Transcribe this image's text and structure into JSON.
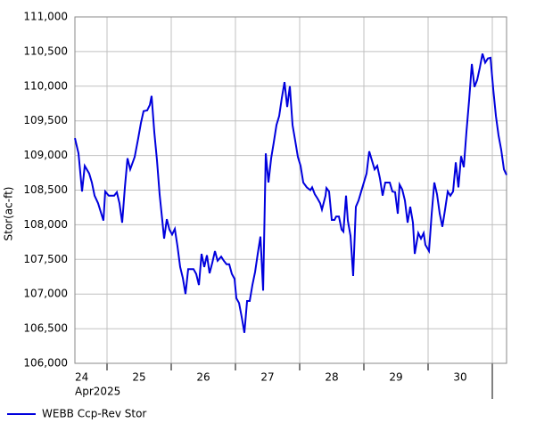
{
  "chart_data": {
    "type": "line",
    "ylabel": "Stor(ac-ft)",
    "x_sublabel": "Apr2025",
    "xlim": [
      24.5,
      31.222
    ],
    "xticks": [
      {
        "value": 24.5,
        "label": "24"
      },
      {
        "value": 25.5,
        "label": "25"
      },
      {
        "value": 26.5,
        "label": "26"
      },
      {
        "value": 27.5,
        "label": "27"
      },
      {
        "value": 28.5,
        "label": "28"
      },
      {
        "value": 29.5,
        "label": "29"
      },
      {
        "value": 30.5,
        "label": "30"
      }
    ],
    "xgrid": [
      25,
      26,
      27,
      28,
      29,
      30,
      31
    ],
    "ylim": [
      106000,
      111000
    ],
    "yticks": [
      {
        "value": 106000,
        "label": "106,000"
      },
      {
        "value": 106500,
        "label": "106,500"
      },
      {
        "value": 107000,
        "label": "107,000"
      },
      {
        "value": 107500,
        "label": "107,500"
      },
      {
        "value": 108000,
        "label": "108,000"
      },
      {
        "value": 108500,
        "label": "108,500"
      },
      {
        "value": 109000,
        "label": "109,000"
      },
      {
        "value": 109500,
        "label": "109,500"
      },
      {
        "value": 110000,
        "label": "110,000"
      },
      {
        "value": 110500,
        "label": "110,500"
      },
      {
        "value": 111000,
        "label": "111,000"
      }
    ],
    "grid": true,
    "x": [
      24.5,
      24.556,
      24.611,
      24.653,
      24.722,
      24.764,
      24.806,
      24.861,
      24.944,
      24.972,
      25.028,
      25.111,
      25.153,
      25.194,
      25.236,
      25.278,
      25.319,
      25.361,
      25.431,
      25.486,
      25.528,
      25.569,
      25.625,
      25.667,
      25.694,
      25.736,
      25.778,
      25.819,
      25.861,
      25.889,
      25.931,
      25.972,
      26.014,
      26.056,
      26.097,
      26.139,
      26.181,
      26.222,
      26.264,
      26.347,
      26.389,
      26.431,
      26.472,
      26.514,
      26.556,
      26.597,
      26.639,
      26.681,
      26.722,
      26.778,
      26.819,
      26.861,
      26.903,
      26.944,
      26.986,
      27.014,
      27.056,
      27.097,
      27.139,
      27.181,
      27.222,
      27.264,
      27.306,
      27.347,
      27.389,
      27.431,
      27.472,
      27.514,
      27.556,
      27.597,
      27.639,
      27.681,
      27.722,
      27.764,
      27.806,
      27.847,
      27.889,
      27.931,
      27.972,
      28.014,
      28.056,
      28.111,
      28.167,
      28.194,
      28.236,
      28.278,
      28.319,
      28.347,
      28.403,
      28.417,
      28.458,
      28.5,
      28.542,
      28.569,
      28.611,
      28.653,
      28.681,
      28.722,
      28.75,
      28.792,
      28.833,
      28.875,
      28.917,
      28.958,
      29.0,
      29.042,
      29.083,
      29.125,
      29.167,
      29.208,
      29.25,
      29.292,
      29.333,
      29.403,
      29.444,
      29.486,
      29.528,
      29.556,
      29.597,
      29.639,
      29.681,
      29.722,
      29.764,
      29.792,
      29.847,
      29.889,
      29.931,
      29.958,
      30.014,
      30.056,
      30.097,
      30.139,
      30.181,
      30.222,
      30.264,
      30.306,
      30.347,
      30.389,
      30.431,
      30.472,
      30.514,
      30.556,
      30.597,
      30.639,
      30.681,
      30.722,
      30.764,
      30.806,
      30.847,
      30.889,
      30.931,
      30.972,
      31.014,
      31.056,
      31.097,
      31.139,
      31.181,
      31.222
    ],
    "series": [
      {
        "name": "WEBB Ccp-Rev Stor",
        "color": "#0000dd",
        "values": [
          109250,
          109030,
          108480,
          108850,
          108740,
          108610,
          108420,
          108310,
          108060,
          108480,
          108420,
          108420,
          108470,
          108310,
          108030,
          108540,
          108960,
          108800,
          108980,
          109250,
          109470,
          109640,
          109650,
          109730,
          109860,
          109340,
          108930,
          108440,
          108060,
          107800,
          108080,
          107930,
          107860,
          107940,
          107690,
          107390,
          107230,
          107000,
          107360,
          107360,
          107290,
          107130,
          107580,
          107390,
          107560,
          107300,
          107450,
          107620,
          107480,
          107540,
          107480,
          107430,
          107430,
          107290,
          107220,
          106940,
          106870,
          106670,
          106440,
          106900,
          106900,
          107130,
          107320,
          107580,
          107830,
          107050,
          109030,
          108610,
          108960,
          109190,
          109440,
          109570,
          109830,
          110060,
          109700,
          110000,
          109440,
          109210,
          108980,
          108850,
          108610,
          108540,
          108500,
          108540,
          108440,
          108380,
          108310,
          108220,
          108420,
          108530,
          108480,
          108070,
          108070,
          108120,
          108120,
          107930,
          107900,
          108420,
          108060,
          107840,
          107260,
          108260,
          108350,
          108480,
          108610,
          108740,
          109060,
          108930,
          108800,
          108850,
          108670,
          108420,
          108610,
          108610,
          108480,
          108470,
          108160,
          108580,
          108510,
          108350,
          108030,
          108260,
          108030,
          107580,
          107880,
          107800,
          107880,
          107710,
          107620,
          108160,
          108610,
          108440,
          108160,
          107970,
          108220,
          108480,
          108420,
          108480,
          108900,
          108540,
          108990,
          108830,
          109340,
          109800,
          110320,
          109990,
          110090,
          110270,
          110470,
          110340,
          110400,
          110410,
          109960,
          109570,
          109290,
          109080,
          108800,
          108720
        ]
      }
    ]
  }
}
